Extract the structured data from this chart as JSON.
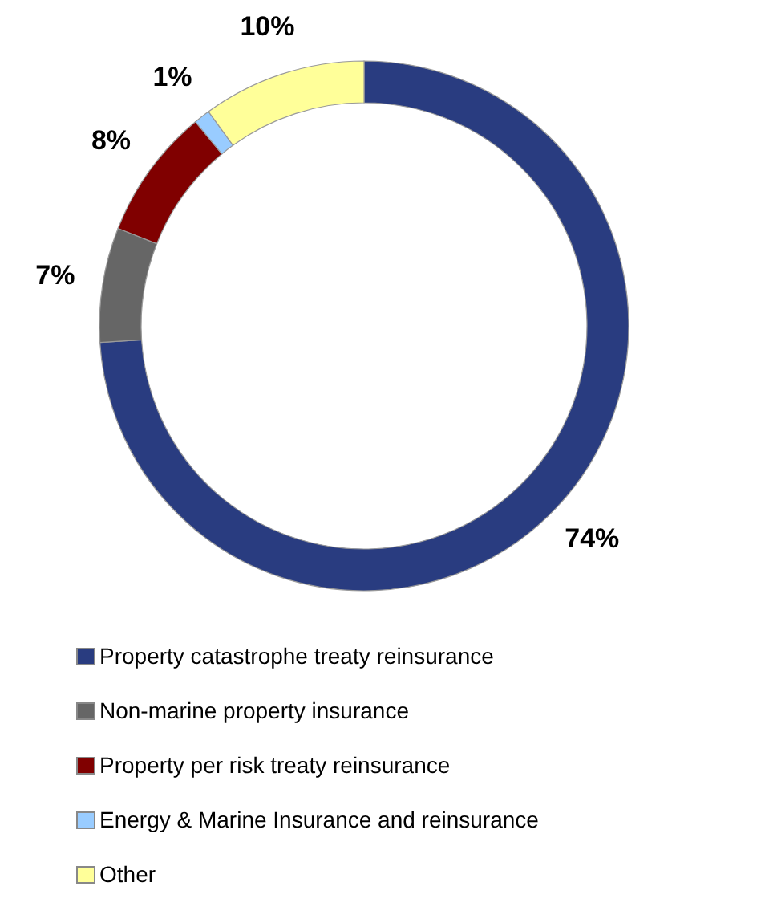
{
  "chart_data": {
    "type": "donut",
    "categories": [
      "Property catastrophe  treaty reinsurance",
      "Non-marine property insurance",
      "Property per risk  treaty reinsurance",
      "Energy & Marine Insurance and reinsurance",
      "Other"
    ],
    "values": [
      74,
      7,
      8,
      1,
      10
    ],
    "colors": [
      "#293c80",
      "#666666",
      "#800000",
      "#99ccff",
      "#ffff99"
    ],
    "value_labels": [
      "74%",
      "7%",
      "8%",
      "1%",
      "10%"
    ],
    "legend": "bottom"
  }
}
